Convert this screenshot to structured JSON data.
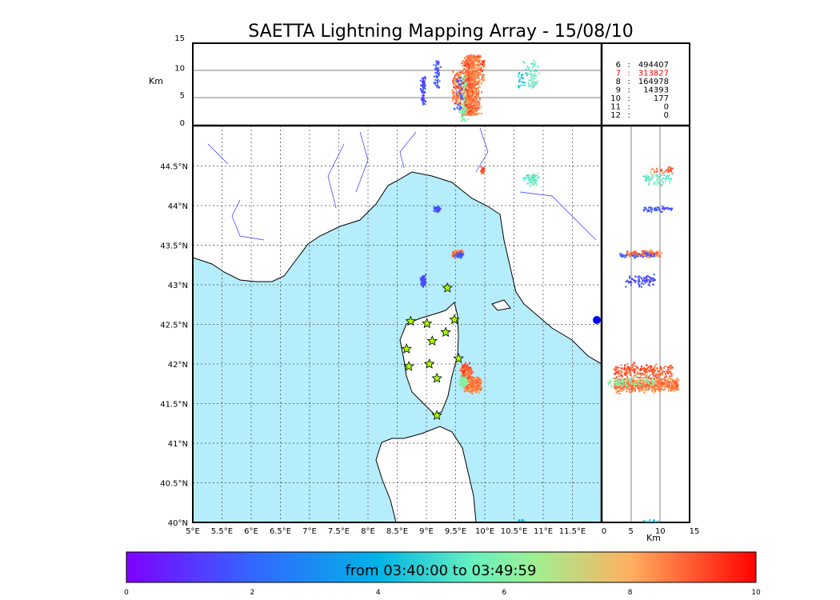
{
  "chart_data": {
    "type": "scatter",
    "title": "SAETTA Lightning Mapping Array - 15/08/10",
    "map": {
      "xlim": [
        5,
        12
      ],
      "ylim": [
        40,
        45
      ],
      "x_ticks": [
        "5°E",
        "5.5°E",
        "6°E",
        "6.5°E",
        "7°E",
        "7.5°E",
        "8°E",
        "8.5°E",
        "9°E",
        "9.5°E",
        "10°E",
        "10.5°E",
        "11°E",
        "11.5°E"
      ],
      "x_tick_values": [
        5,
        5.5,
        6,
        6.5,
        7,
        7.5,
        8,
        8.5,
        9,
        9.5,
        10,
        10.5,
        11,
        11.5
      ],
      "y_ticks": [
        "40°N",
        "40.5°N",
        "41°N",
        "41.5°N",
        "42°N",
        "42.5°N",
        "43°N",
        "43.5°N",
        "44°N",
        "44.5°N"
      ],
      "y_tick_values": [
        40,
        40.5,
        41,
        41.5,
        42,
        42.5,
        43,
        43.5,
        44,
        44.5
      ],
      "grid": true
    },
    "altitude": {
      "label": "Km",
      "range": [
        0,
        15
      ],
      "ticks": [
        "0",
        "5",
        "10",
        "15"
      ],
      "tick_values": [
        0,
        5,
        10,
        15
      ]
    },
    "counts": [
      {
        "stations": "6",
        "sep": ":",
        "count": "494407",
        "color": "#000000"
      },
      {
        "stations": "7",
        "sep": ":",
        "count": "313827",
        "color": "#ff0000"
      },
      {
        "stations": "8",
        "sep": ":",
        "count": "164978",
        "color": "#000000"
      },
      {
        "stations": "9",
        "sep": ":",
        "count": "14393",
        "color": "#000000"
      },
      {
        "stations": "10",
        "sep": ":",
        "count": "177",
        "color": "#000000"
      },
      {
        "stations": "11",
        "sep": ":",
        "count": "0",
        "color": "#000000"
      },
      {
        "stations": "12",
        "sep": ":",
        "count": "0",
        "color": "#000000"
      }
    ],
    "stations": [
      [
        9.36,
        42.96
      ],
      [
        8.73,
        42.54
      ],
      [
        9.01,
        42.51
      ],
      [
        9.48,
        42.56
      ],
      [
        9.33,
        42.4
      ],
      [
        9.1,
        42.29
      ],
      [
        8.66,
        42.19
      ],
      [
        9.55,
        42.07
      ],
      [
        8.7,
        41.97
      ],
      [
        9.05,
        42.0
      ],
      [
        9.18,
        41.82
      ],
      [
        9.18,
        41.35
      ]
    ],
    "clusters": [
      {
        "lon": 9.78,
        "lat": 41.75,
        "dlon": 0.09,
        "dlat": 0.06,
        "alt": [
          2,
          13
        ],
        "time": 8.6,
        "n": 700
      },
      {
        "lon": 9.68,
        "lat": 41.92,
        "dlon": 0.06,
        "dlat": 0.06,
        "alt": [
          2,
          12
        ],
        "time": 8.9,
        "n": 250
      },
      {
        "lon": 9.62,
        "lat": 41.78,
        "dlon": 0.05,
        "dlat": 0.05,
        "alt": [
          1,
          9
        ],
        "time": 6.0,
        "n": 100
      },
      {
        "lon": 9.52,
        "lat": 43.4,
        "dlon": 0.07,
        "dlat": 0.03,
        "alt": [
          4,
          10
        ],
        "time": 8.7,
        "n": 150
      },
      {
        "lon": 9.55,
        "lat": 43.38,
        "dlon": 0.05,
        "dlat": 0.02,
        "alt": [
          3,
          9
        ],
        "time": 1.8,
        "n": 40
      },
      {
        "lon": 8.93,
        "lat": 43.06,
        "dlon": 0.03,
        "dlat": 0.05,
        "alt": [
          4,
          9
        ],
        "time": 1.5,
        "n": 80
      },
      {
        "lon": 9.17,
        "lat": 43.97,
        "dlon": 0.04,
        "dlat": 0.03,
        "alt": [
          7,
          12
        ],
        "time": 1.6,
        "n": 50
      },
      {
        "lon": 9.95,
        "lat": 44.45,
        "dlon": 0.03,
        "dlat": 0.03,
        "alt": [
          8,
          12
        ],
        "time": 9.0,
        "n": 30
      },
      {
        "lon": 10.8,
        "lat": 44.35,
        "dlon": 0.1,
        "dlat": 0.06,
        "alt": [
          7,
          12
        ],
        "time": 5.5,
        "n": 60
      },
      {
        "lon": 10.6,
        "lat": 40.02,
        "dlon": 0.05,
        "dlat": 0.02,
        "alt": [
          7,
          10
        ],
        "time": 4.5,
        "n": 20
      }
    ],
    "colorbar": {
      "label": "from 03:40:00 to 03:49:59",
      "range": [
        0,
        10
      ],
      "ticks": [
        "0",
        "2",
        "4",
        "6",
        "8",
        "10"
      ],
      "tick_values": [
        0,
        2,
        4,
        6,
        8,
        10
      ]
    }
  }
}
